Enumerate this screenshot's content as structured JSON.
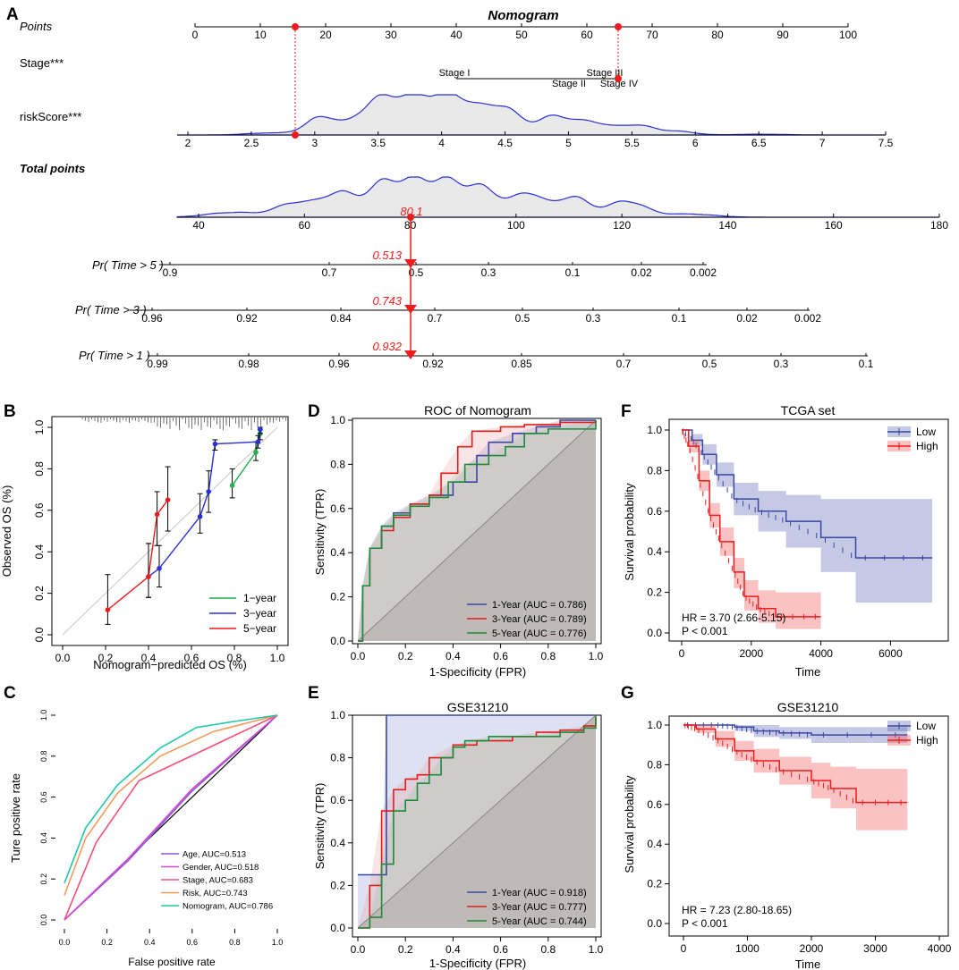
{
  "panel_labels": {
    "a": "A",
    "b": "B",
    "c": "C",
    "d": "D",
    "e": "E",
    "f": "F",
    "g": "G"
  },
  "colors": {
    "red": "#ee1c1c",
    "blue": "#2b2fd6",
    "green": "#22b14c",
    "navy": "#3a48a0",
    "teal": "#1fc8a6"
  },
  "chart_data": [
    {
      "panel": "A",
      "type": "nomogram",
      "title": "Nomogram",
      "rows": {
        "points": {
          "label": "Points",
          "ticks": [
            "0",
            "10",
            "20",
            "30",
            "40",
            "50",
            "60",
            "70",
            "80",
            "90",
            "100"
          ],
          "range": [
            0,
            100
          ]
        },
        "stage": {
          "label": "Stage***",
          "categories": [
            "Stage I",
            "Stage II",
            "Stage III",
            "Stage IV"
          ],
          "points_range": [
            40,
            65
          ]
        },
        "risk": {
          "label": "riskScore***",
          "ticks": [
            "2",
            "2.5",
            "3",
            "3.5",
            "4",
            "4.5",
            "5",
            "5.5",
            "6",
            "6.5",
            "7",
            "7.5"
          ],
          "range": [
            2,
            7.5
          ]
        },
        "total": {
          "label": "Total points",
          "ticks": [
            "40",
            "60",
            "80",
            "100",
            "120",
            "140",
            "160",
            "180"
          ],
          "range": [
            40,
            180
          ],
          "marked_value": "80.1"
        },
        "pr5": {
          "label": "Pr( Time > 5 )",
          "ticks": [
            "0.9",
            "0.7",
            "0.5",
            "0.3",
            "0.1",
            "0.02",
            "0.002"
          ],
          "marked_value": "0.513"
        },
        "pr3": {
          "label": "Pr( Time > 3 )",
          "ticks": [
            "0.96",
            "0.92",
            "0.84",
            "0.7",
            "0.5",
            "0.3",
            "0.1",
            "0.02",
            "0.002"
          ],
          "marked_value": "0.743"
        },
        "pr1": {
          "label": "Pr( Time > 1 )",
          "ticks": [
            "0.99",
            "0.98",
            "0.96",
            "0.92",
            "0.85",
            "0.7",
            "0.5",
            "0.3",
            "0.1"
          ],
          "marked_value": "0.932"
        }
      }
    },
    {
      "panel": "B",
      "type": "calibration",
      "xlabel": "Nomogram−predicted OS (%)",
      "ylabel": "Observed OS (%)",
      "xlim": [
        0,
        1
      ],
      "ylim": [
        0,
        1
      ],
      "xticks": [
        "0.0",
        "0.2",
        "0.4",
        "0.6",
        "0.8",
        "1.0"
      ],
      "yticks": [
        "0.0",
        "0.2",
        "0.4",
        "0.6",
        "0.8",
        "1.0"
      ],
      "legend": [
        "1−year",
        "3−year",
        "5−year"
      ],
      "series": [
        {
          "name": "1-year",
          "x": [
            0.79,
            0.9,
            0.92
          ],
          "y": [
            0.72,
            0.88,
            0.97
          ],
          "lo": [
            0.66,
            0.84,
            0.94
          ],
          "hi": [
            0.8,
            0.93,
            0.99
          ]
        },
        {
          "name": "3-year",
          "x": [
            0.4,
            0.45,
            0.64,
            0.68,
            0.71,
            0.91,
            0.92
          ],
          "y": [
            0.28,
            0.32,
            0.57,
            0.69,
            0.92,
            0.93,
            0.99
          ],
          "lo": [
            0.18,
            0.23,
            0.49,
            0.59,
            0.89,
            0.9,
            0.97
          ],
          "hi": [
            0.44,
            0.43,
            0.68,
            0.79,
            0.94,
            0.96,
            1.0
          ]
        },
        {
          "name": "5-year",
          "x": [
            0.21,
            0.4,
            0.44,
            0.49
          ],
          "y": [
            0.12,
            0.28,
            0.58,
            0.65
          ],
          "lo": [
            0.05,
            0.18,
            0.43,
            0.5
          ],
          "hi": [
            0.29,
            0.44,
            0.69,
            0.81
          ]
        }
      ]
    },
    {
      "panel": "C",
      "type": "roc",
      "xlabel": "False positive rate",
      "ylabel": "Ture positive rate",
      "xticks": [
        "0.0",
        "0.2",
        "0.4",
        "0.6",
        "0.8",
        "1.0"
      ],
      "yticks": [
        "0.0",
        "0.2",
        "0.4",
        "0.6",
        "0.8",
        "1.0"
      ],
      "series": [
        {
          "name": "Age, AUC=0.513",
          "color": "#8b5bd6",
          "x": [
            0,
            0.3,
            0.6,
            1
          ],
          "y": [
            0,
            0.29,
            0.63,
            1
          ]
        },
        {
          "name": "Gender, AUC=0.518",
          "color": "#d44ad4",
          "x": [
            0,
            0.3,
            0.6,
            1
          ],
          "y": [
            0,
            0.3,
            0.64,
            1
          ]
        },
        {
          "name": "Stage, AUC=0.683",
          "color": "#f0507a",
          "x": [
            0,
            0.15,
            0.35,
            1
          ],
          "y": [
            0,
            0.38,
            0.68,
            1
          ]
        },
        {
          "name": "Risk, AUC=0.743",
          "color": "#f39a5a",
          "x": [
            0,
            0.1,
            0.25,
            0.45,
            0.7,
            1
          ],
          "y": [
            0.12,
            0.4,
            0.62,
            0.8,
            0.92,
            1
          ]
        },
        {
          "name": "Nomogram, AUC=0.786",
          "color": "#1fc8a6",
          "x": [
            0,
            0.1,
            0.25,
            0.45,
            0.62,
            0.8,
            1
          ],
          "y": [
            0.18,
            0.45,
            0.66,
            0.84,
            0.94,
            0.97,
            1
          ]
        }
      ]
    },
    {
      "panel": "D",
      "type": "roc",
      "title": "ROC of Nomogram",
      "xlabel": "1-Specificity (FPR)",
      "ylabel": "Sensitivity (TPR)",
      "xticks": [
        "0.0",
        "0.2",
        "0.4",
        "0.6",
        "0.8",
        "1.0"
      ],
      "yticks": [
        "0.0",
        "0.2",
        "0.4",
        "0.6",
        "0.8",
        "1.0"
      ],
      "series": [
        {
          "name": "1-Year (AUC = 0.786)",
          "color": "#3a48a0",
          "x": [
            0,
            0.02,
            0.05,
            0.1,
            0.15,
            0.22,
            0.3,
            0.4,
            0.5,
            0.55,
            0.65,
            0.75,
            0.85,
            1
          ],
          "y": [
            0,
            0.25,
            0.42,
            0.52,
            0.58,
            0.62,
            0.66,
            0.72,
            0.84,
            0.9,
            0.94,
            0.97,
            1,
            1
          ]
        },
        {
          "name": "3-Year (AUC = 0.789)",
          "color": "#e01e1e",
          "x": [
            0,
            0.02,
            0.05,
            0.1,
            0.15,
            0.22,
            0.3,
            0.35,
            0.42,
            0.48,
            0.6,
            0.7,
            0.85,
            1
          ],
          "y": [
            0,
            0.25,
            0.42,
            0.5,
            0.56,
            0.62,
            0.66,
            0.76,
            0.88,
            0.95,
            0.97,
            0.98,
            0.99,
            1
          ]
        },
        {
          "name": "5-Year (AUC = 0.776)",
          "color": "#1f8a3a",
          "x": [
            0,
            0.02,
            0.05,
            0.1,
            0.15,
            0.22,
            0.3,
            0.38,
            0.45,
            0.55,
            0.62,
            0.7,
            0.8,
            1
          ],
          "y": [
            0,
            0.25,
            0.42,
            0.52,
            0.57,
            0.61,
            0.65,
            0.72,
            0.8,
            0.84,
            0.88,
            0.94,
            0.96,
            1
          ]
        }
      ]
    },
    {
      "panel": "E",
      "type": "roc",
      "title": "GSE31210",
      "xlabel": "1-Specificity (FPR)",
      "ylabel": "Sensitivity (TPR)",
      "xticks": [
        "0.0",
        "0.2",
        "0.4",
        "0.6",
        "0.8",
        "1.0"
      ],
      "yticks": [
        "0.0",
        "0.2",
        "0.4",
        "0.6",
        "0.8",
        "1.0"
      ],
      "series": [
        {
          "name": "1-Year (AUC = 0.918)",
          "color": "#3a48a0",
          "x": [
            0,
            0.05,
            0.1,
            0.12,
            0.2,
            0.98,
            1
          ],
          "y": [
            0.25,
            0.25,
            0.25,
            1,
            1,
            1,
            1
          ]
        },
        {
          "name": "3-Year (AUC = 0.777)",
          "color": "#e01e1e",
          "x": [
            0,
            0.05,
            0.1,
            0.15,
            0.2,
            0.25,
            0.3,
            0.4,
            0.5,
            0.55,
            0.65,
            0.75,
            0.85,
            0.95,
            1
          ],
          "y": [
            0,
            0.2,
            0.55,
            0.65,
            0.7,
            0.72,
            0.8,
            0.86,
            0.88,
            0.88,
            0.9,
            0.92,
            0.93,
            0.95,
            1
          ]
        },
        {
          "name": "5-Year (AUC = 0.744)",
          "color": "#1f8a3a",
          "x": [
            0,
            0.05,
            0.1,
            0.15,
            0.2,
            0.25,
            0.3,
            0.35,
            0.4,
            0.45,
            0.55,
            0.65,
            0.75,
            0.85,
            0.95,
            1
          ],
          "y": [
            0,
            0.05,
            0.3,
            0.55,
            0.6,
            0.68,
            0.72,
            0.8,
            0.85,
            0.88,
            0.9,
            0.9,
            0.9,
            0.92,
            0.94,
            1
          ]
        }
      ]
    },
    {
      "panel": "F",
      "type": "survival",
      "title": "TCGA set",
      "xlabel": "Time",
      "ylabel": "Survival probability",
      "xlim": [
        0,
        7300
      ],
      "ylim": [
        0,
        1
      ],
      "xticks": [
        "0",
        "2000",
        "4000",
        "6000"
      ],
      "yticks": [
        "0.0",
        "0.2",
        "0.4",
        "0.6",
        "0.8",
        "1.0"
      ],
      "legend": [
        "Low",
        "High"
      ],
      "annotation": [
        "HR = 3.70 (2.66-5.15)",
        "P < 0.001"
      ],
      "series": [
        {
          "name": "Low",
          "color": "#3a48a0",
          "x": [
            0,
            300,
            600,
            1000,
            1500,
            2200,
            3000,
            4000,
            5000,
            7200
          ],
          "y": [
            1.0,
            0.95,
            0.88,
            0.78,
            0.66,
            0.6,
            0.55,
            0.47,
            0.37,
            0.37
          ],
          "lo": [
            1.0,
            0.92,
            0.83,
            0.72,
            0.58,
            0.5,
            0.42,
            0.3,
            0.15,
            0.07
          ],
          "hi": [
            1.0,
            0.98,
            0.93,
            0.84,
            0.74,
            0.7,
            0.68,
            0.66,
            0.66,
            0.66
          ]
        },
        {
          "name": "High",
          "color": "#ee1c1c",
          "x": [
            0,
            200,
            500,
            800,
            1100,
            1500,
            1800,
            2200,
            2700,
            4000
          ],
          "y": [
            1.0,
            0.92,
            0.75,
            0.58,
            0.45,
            0.3,
            0.18,
            0.12,
            0.08,
            0.08
          ],
          "lo": [
            1.0,
            0.89,
            0.7,
            0.52,
            0.38,
            0.22,
            0.11,
            0.05,
            0.02,
            0.02
          ],
          "hi": [
            1.0,
            0.95,
            0.8,
            0.64,
            0.52,
            0.37,
            0.26,
            0.21,
            0.2,
            0.2
          ]
        }
      ]
    },
    {
      "panel": "G",
      "type": "survival",
      "title": "GSE31210",
      "xlabel": "Time",
      "ylabel": "Survival probability",
      "xlim": [
        0,
        4000
      ],
      "ylim": [
        0,
        1
      ],
      "xticks": [
        "0",
        "1000",
        "2000",
        "3000",
        "4000"
      ],
      "yticks": [
        "0.0",
        "0.2",
        "0.4",
        "0.6",
        "0.8",
        "1.0"
      ],
      "legend": [
        "Low",
        "High"
      ],
      "annotation": [
        "HR = 7.23 (2.80-18.65)",
        "P < 0.001"
      ],
      "series": [
        {
          "name": "Low",
          "color": "#3a48a0",
          "x": [
            0,
            500,
            800,
            1100,
            1500,
            2000,
            3500
          ],
          "y": [
            1.0,
            1.0,
            0.99,
            0.97,
            0.96,
            0.95,
            0.95
          ],
          "lo": [
            1.0,
            1.0,
            0.97,
            0.94,
            0.93,
            0.91,
            0.9
          ],
          "hi": [
            1.0,
            1.0,
            1.0,
            1.0,
            0.99,
            0.99,
            0.99
          ]
        },
        {
          "name": "High",
          "color": "#ee1c1c",
          "x": [
            0,
            200,
            500,
            800,
            1100,
            1500,
            2000,
            2300,
            2700,
            3500
          ],
          "y": [
            1.0,
            0.98,
            0.93,
            0.87,
            0.82,
            0.77,
            0.72,
            0.68,
            0.61,
            0.61
          ],
          "lo": [
            1.0,
            0.96,
            0.89,
            0.82,
            0.76,
            0.7,
            0.63,
            0.58,
            0.47,
            0.47
          ],
          "hi": [
            1.0,
            1.0,
            0.97,
            0.92,
            0.88,
            0.84,
            0.81,
            0.79,
            0.78,
            0.78
          ]
        }
      ]
    }
  ]
}
